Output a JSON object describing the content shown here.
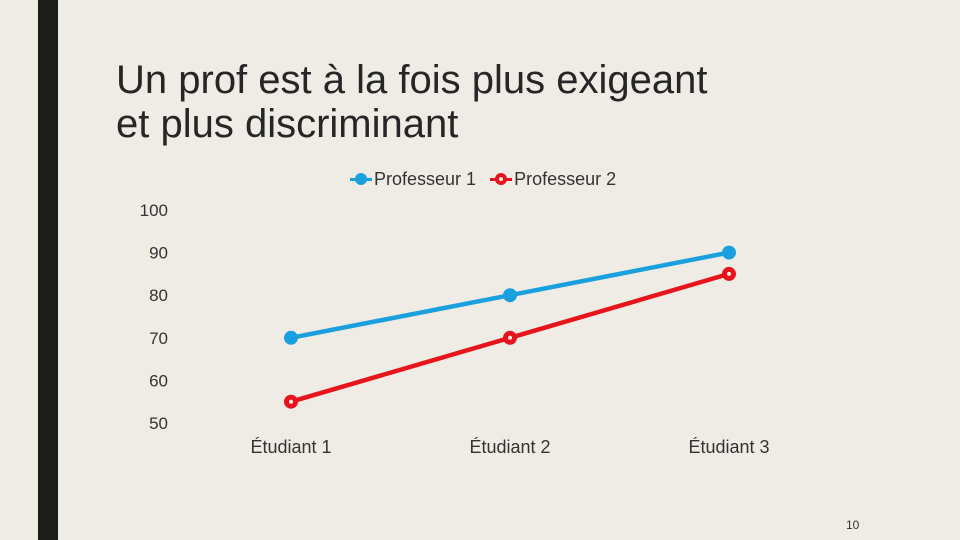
{
  "slide": {
    "title_lines": [
      "Un prof est à la fois plus exigeant",
      "et plus discriminant"
    ],
    "page_number": "10"
  },
  "colors": {
    "background": "#efece5",
    "left_bar": "#1c1c18",
    "series_1": "#1aa0de",
    "series_2": "#e8141b"
  },
  "chart_data": {
    "type": "line",
    "categories": [
      "Étudiant 1",
      "Étudiant 2",
      "Étudiant 3"
    ],
    "series": [
      {
        "name": "Professeur 1",
        "values": [
          70,
          80,
          90
        ],
        "color": "#1aa0de",
        "marker": "circle"
      },
      {
        "name": "Professeur 2",
        "values": [
          55,
          70,
          85
        ],
        "color": "#e8141b",
        "marker": "circle-hollow"
      }
    ],
    "y_ticks": [
      "100",
      "90",
      "80",
      "70",
      "60",
      "50"
    ],
    "ylim": [
      50,
      100
    ],
    "grid": false,
    "legend_position": "top"
  }
}
